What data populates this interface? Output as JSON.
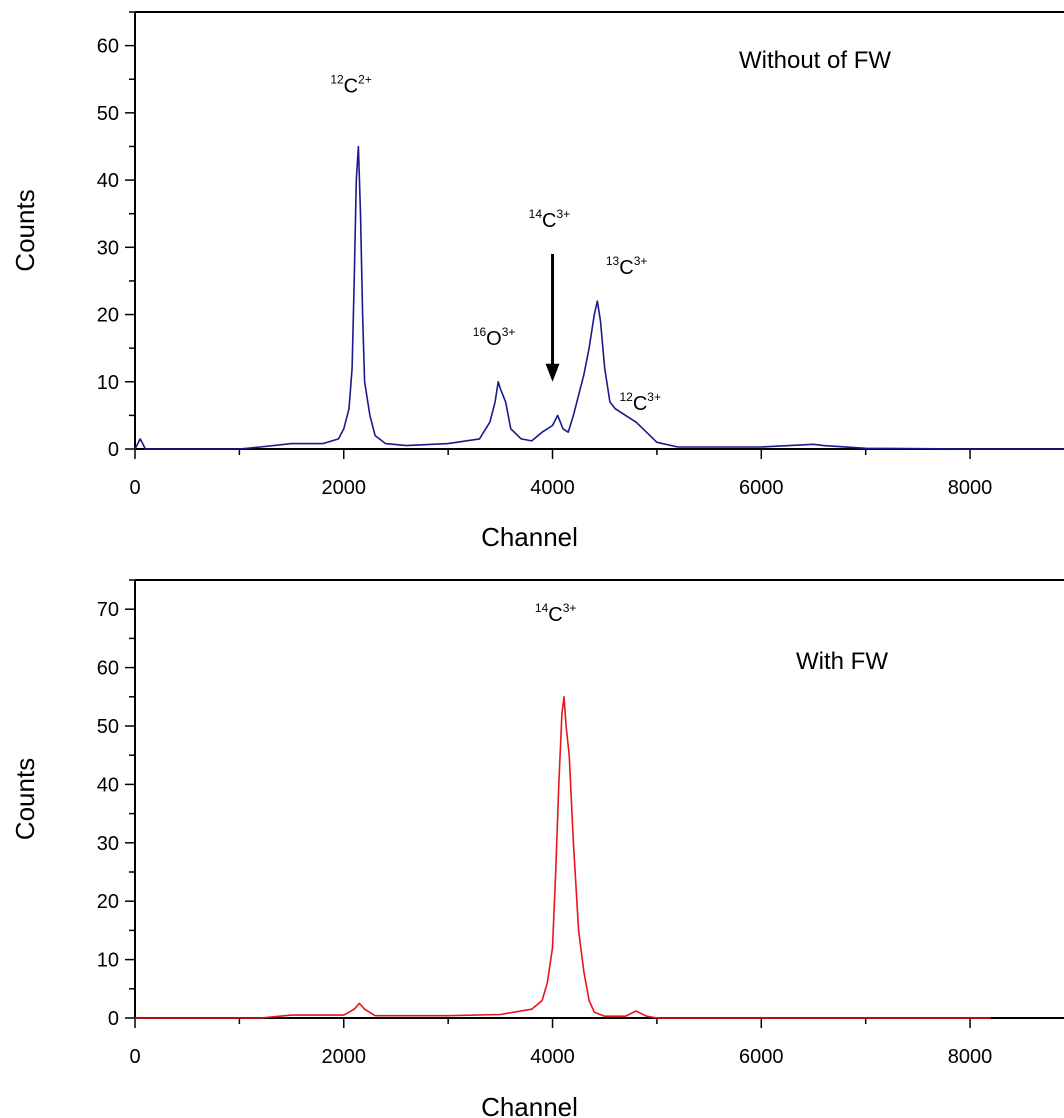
{
  "chart_data": [
    {
      "type": "line",
      "title": "",
      "xlabel": "Channel",
      "ylabel": "Counts",
      "xlim": [
        0,
        8900
      ],
      "ylim": [
        0,
        65
      ],
      "x_ticks": [
        0,
        2000,
        4000,
        6000,
        8000
      ],
      "y_ticks": [
        0,
        10,
        20,
        30,
        40,
        50,
        60
      ],
      "grid": false,
      "series": [
        {
          "color": "#1a1a8c",
          "x": [
            0,
            50,
            100,
            1000,
            1200,
            1500,
            1800,
            1950,
            2000,
            2050,
            2080,
            2100,
            2120,
            2140,
            2160,
            2180,
            2200,
            2250,
            2300,
            2400,
            2600,
            3000,
            3300,
            3400,
            3450,
            3480,
            3500,
            3550,
            3600,
            3700,
            3800,
            3900,
            4000,
            4050,
            4100,
            4150,
            4200,
            4250,
            4300,
            4350,
            4400,
            4430,
            4460,
            4500,
            4550,
            4600,
            4700,
            4800,
            4900,
            5000,
            5200,
            6000,
            6500,
            6600,
            7000,
            8000,
            8900
          ],
          "y": [
            0,
            1.5,
            0,
            0,
            0.3,
            0.8,
            0.8,
            1.5,
            3,
            6,
            12,
            25,
            40,
            45,
            35,
            20,
            10,
            5,
            2,
            0.8,
            0.5,
            0.8,
            1.5,
            4,
            7,
            10,
            9,
            7,
            3,
            1.5,
            1.2,
            2.5,
            3.5,
            5,
            3,
            2.5,
            5,
            8,
            11,
            15,
            20,
            22,
            19,
            12,
            7,
            6,
            5,
            4,
            2.5,
            1,
            0.3,
            0.3,
            0.7,
            0.5,
            0.1,
            0,
            0
          ]
        }
      ],
      "annotations": {
        "panel_text": "Without of FW",
        "peaks": [
          {
            "iso": "12",
            "el": "C",
            "chg": "2+",
            "x": 2070,
            "y": 53
          },
          {
            "iso": "14",
            "el": "C",
            "chg": "3+",
            "x": 3970,
            "y": 33
          },
          {
            "iso": "13",
            "el": "C",
            "chg": "3+",
            "x": 4710,
            "y": 26
          },
          {
            "iso": "16",
            "el": "O",
            "chg": "3+",
            "x": 3440,
            "y": 15.5
          },
          {
            "iso": "12",
            "el": "C",
            "chg": "3+",
            "x": 4840,
            "y": 5.8
          }
        ],
        "arrow": {
          "x": 4000,
          "y_from": 29,
          "y_to": 10
        }
      }
    },
    {
      "type": "line",
      "title": "",
      "xlabel": "Channel",
      "ylabel": "Counts",
      "xlim": [
        0,
        8900
      ],
      "ylim": [
        0,
        75
      ],
      "x_ticks": [
        0,
        2000,
        4000,
        6000,
        8000
      ],
      "y_ticks": [
        0,
        10,
        20,
        30,
        40,
        50,
        60,
        70
      ],
      "grid": false,
      "series": [
        {
          "color": "#e8141c",
          "x": [
            0,
            1200,
            1500,
            2000,
            2100,
            2150,
            2200,
            2300,
            3000,
            3500,
            3800,
            3900,
            3950,
            4000,
            4030,
            4060,
            4090,
            4110,
            4130,
            4160,
            4200,
            4250,
            4300,
            4350,
            4400,
            4500,
            4700,
            4800,
            4900,
            5000,
            8200
          ],
          "y": [
            0,
            0,
            0.5,
            0.5,
            1.5,
            2.5,
            1.5,
            0.4,
            0.4,
            0.6,
            1.5,
            3,
            6,
            12,
            25,
            40,
            52,
            55,
            50,
            45,
            30,
            15,
            8,
            3,
            1,
            0.3,
            0.3,
            1.2,
            0.3,
            0,
            0
          ]
        }
      ],
      "annotations": {
        "panel_text": "With FW",
        "peaks": [
          {
            "iso": "14",
            "el": "C",
            "chg": "3+",
            "x": 4030,
            "y": 68
          }
        ]
      }
    }
  ]
}
